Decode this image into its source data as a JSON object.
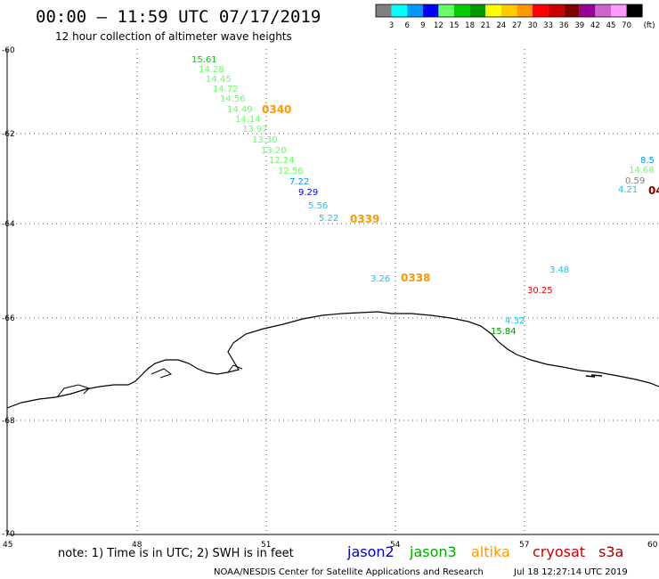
{
  "title": "00:00 — 11:59 UTC 07/17/2019",
  "subtitle": "12 hour collection of altimeter wave heights",
  "colorbar": {
    "unit": "(ft)",
    "bins": [
      {
        "color": "#808080",
        "label": "3"
      },
      {
        "color": "#00ffff",
        "label": "6"
      },
      {
        "color": "#0099ff",
        "label": "9"
      },
      {
        "color": "#0000ff",
        "label": "12"
      },
      {
        "color": "#66ff66",
        "label": "15"
      },
      {
        "color": "#00cc00",
        "label": "18"
      },
      {
        "color": "#009900",
        "label": "21"
      },
      {
        "color": "#ffff00",
        "label": "24"
      },
      {
        "color": "#ffcc00",
        "label": "27"
      },
      {
        "color": "#ff9900",
        "label": "30"
      },
      {
        "color": "#ff0000",
        "label": "33"
      },
      {
        "color": "#cc0000",
        "label": "36"
      },
      {
        "color": "#800000",
        "label": "39"
      },
      {
        "color": "#990099",
        "label": "42"
      },
      {
        "color": "#cc66cc",
        "label": "45"
      },
      {
        "color": "#ff99ff",
        "label": "70"
      },
      {
        "color": "#000000",
        "label": ""
      }
    ]
  },
  "axes": {
    "lon_ticks": [
      "45",
      "48",
      "51",
      "54",
      "57",
      "60"
    ],
    "lat_ticks": [
      "-60",
      "-62",
      "-64",
      "-66",
      "-68",
      "-70"
    ]
  },
  "observations": [
    {
      "v": "15.61",
      "c": "#00cc00"
    },
    {
      "v": "14.28",
      "c": "#66ff66"
    },
    {
      "v": "14.45",
      "c": "#66ff66"
    },
    {
      "v": "14.72",
      "c": "#66ff66"
    },
    {
      "v": "14.56",
      "c": "#66ff66"
    },
    {
      "v": "14.49",
      "c": "#66ff66"
    },
    {
      "v": "14.14",
      "c": "#66ff66"
    },
    {
      "v": "13.97",
      "c": "#66ff66"
    },
    {
      "v": "13.30",
      "c": "#66ff66"
    },
    {
      "v": "13.20",
      "c": "#66ff66"
    },
    {
      "v": "12.24",
      "c": "#66ff66"
    },
    {
      "v": "12.56",
      "c": "#66ff66"
    },
    {
      "v": "7.22",
      "c": "#0099ff"
    },
    {
      "v": "9.29",
      "c": "#0000ff"
    },
    {
      "v": "5.56",
      "c": "#00ccff"
    },
    {
      "v": "5.22",
      "c": "#00ccff"
    },
    {
      "v": "3.26",
      "c": "#00ccff"
    },
    {
      "v": "3.48",
      "c": "#00ccff"
    },
    {
      "v": "30.25",
      "c": "#ff0000"
    },
    {
      "v": "4.32",
      "c": "#00ccff"
    },
    {
      "v": "15.84",
      "c": "#009900"
    },
    {
      "v": "8.5",
      "c": "#0099ff"
    },
    {
      "v": "14.68",
      "c": "#66ff66"
    },
    {
      "v": "0.59",
      "c": "#808080"
    },
    {
      "v": "4.21",
      "c": "#00ccff"
    }
  ],
  "time_labels": [
    {
      "v": "0340",
      "c": "#ff9900"
    },
    {
      "v": "0339",
      "c": "#ff9900"
    },
    {
      "v": "0338",
      "c": "#ff9900"
    },
    {
      "v": "04",
      "c": "#800000"
    }
  ],
  "footer": {
    "note": "note: 1) Time is in UTC; 2) SWH is in feet",
    "satellites": [
      {
        "name": "jason2",
        "color": "#0000cc"
      },
      {
        "name": "jason3",
        "color": "#00aa00"
      },
      {
        "name": "altika",
        "color": "#ff9900"
      },
      {
        "name": "cryosat",
        "color": "#cc0000"
      },
      {
        "name": "s3a",
        "color": "#990000"
      }
    ],
    "credit": "NOAA/NESDIS Center for Satellite Applications and Research",
    "timestamp": "Jul 18 12:27:14 UTC 2019"
  }
}
